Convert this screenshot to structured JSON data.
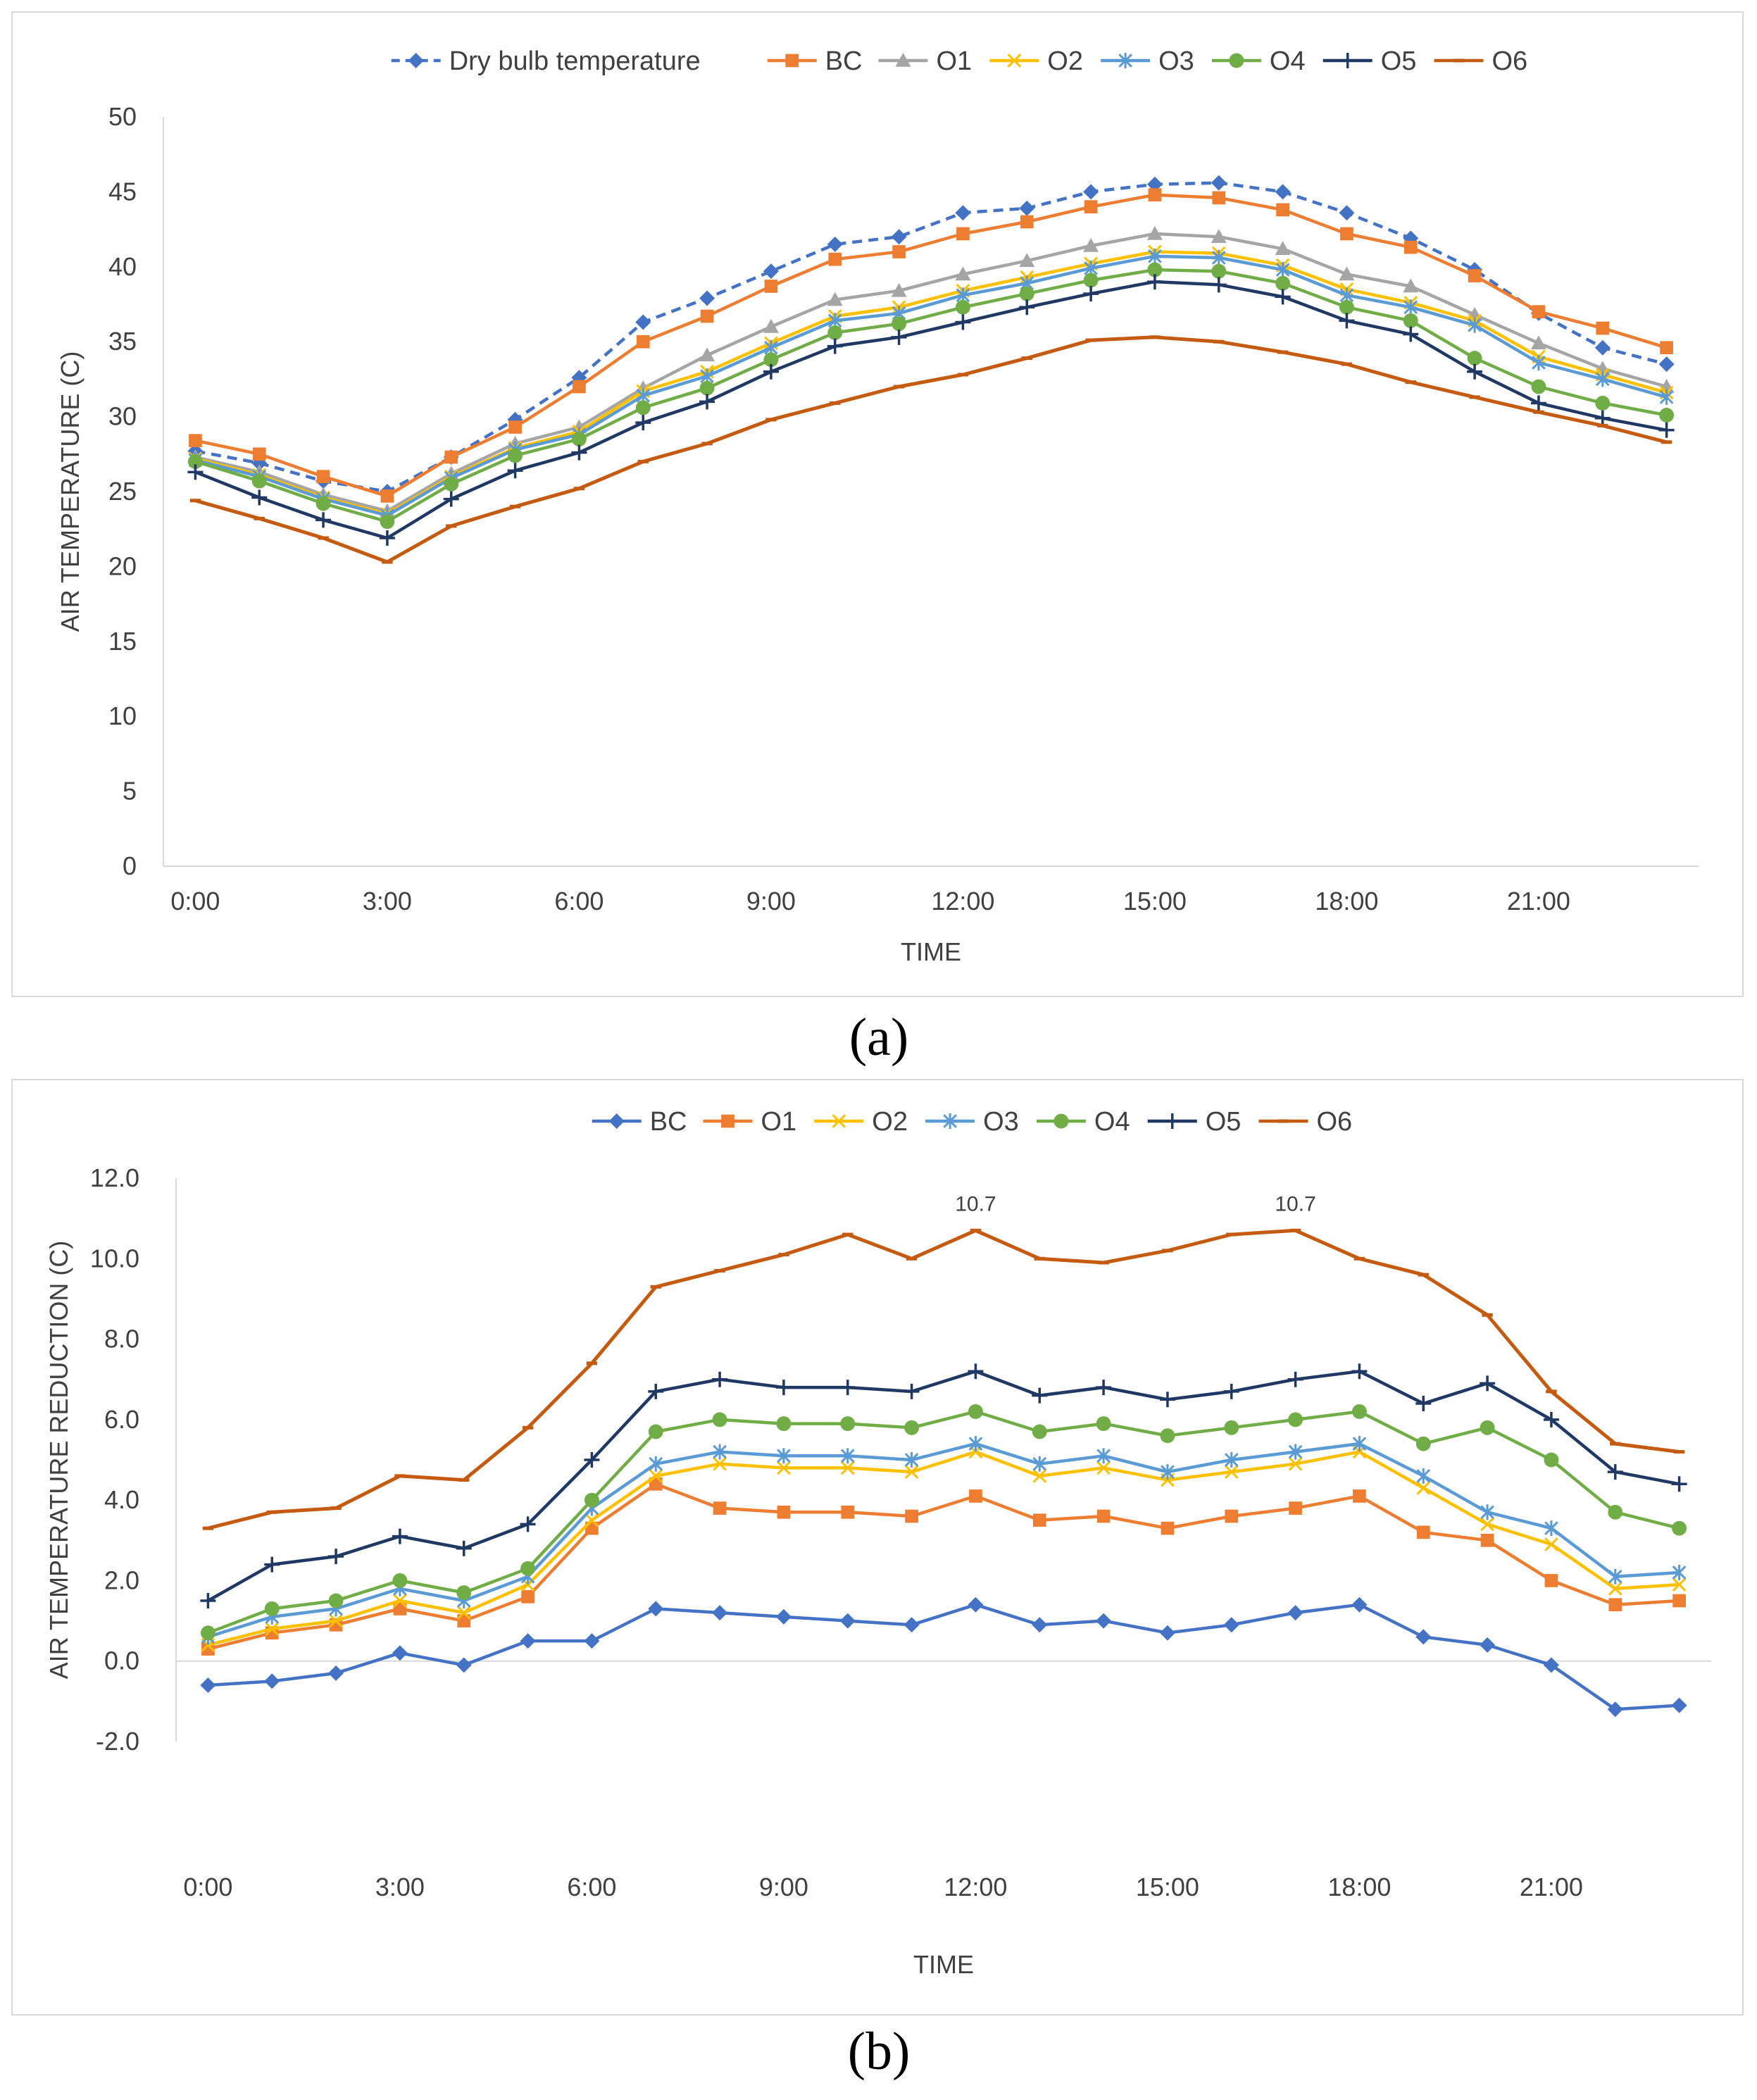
{
  "captions": {
    "a": "(a)",
    "b": "(b)"
  },
  "chart_data": [
    {
      "type": "line",
      "id": "a",
      "title": "",
      "xlabel": "TIME",
      "ylabel": "AIR TEMPERATURE  (C)",
      "x": [
        0,
        1,
        2,
        3,
        4,
        5,
        6,
        7,
        8,
        9,
        10,
        11,
        12,
        13,
        14,
        15,
        16,
        17,
        18,
        19,
        20,
        21,
        22,
        23
      ],
      "xticks": [
        0,
        3,
        6,
        9,
        12,
        15,
        18,
        21
      ],
      "xtick_labels": [
        "0:00",
        "3:00",
        "6:00",
        "9:00",
        "12:00",
        "15:00",
        "18:00",
        "21:00"
      ],
      "ylim": [
        0,
        50
      ],
      "yticks": [
        0,
        5,
        10,
        15,
        20,
        25,
        30,
        35,
        40,
        45,
        50
      ],
      "ytick_labels": [
        "0",
        "5",
        "10",
        "15",
        "20",
        "25",
        "30",
        "35",
        "40",
        "45",
        "50"
      ],
      "grid": false,
      "legend": "top",
      "series": [
        {
          "name": "Dry bulb temperature",
          "color": "#4472c4",
          "marker": "diamond",
          "dashed": true,
          "values": [
            27.7,
            26.9,
            25.7,
            25.0,
            27.3,
            29.8,
            32.6,
            36.3,
            37.9,
            39.7,
            41.5,
            42.0,
            43.6,
            43.9,
            45.0,
            45.5,
            45.6,
            45.0,
            43.6,
            41.9,
            39.8,
            36.9,
            34.6,
            33.5
          ]
        },
        {
          "name": "BC",
          "color": "#ed7d31",
          "marker": "square",
          "dashed": false,
          "values": [
            28.4,
            27.5,
            26.0,
            24.7,
            27.3,
            29.3,
            32.0,
            35.0,
            36.7,
            38.7,
            40.5,
            41.0,
            42.2,
            43.0,
            44.0,
            44.8,
            44.6,
            43.8,
            42.2,
            41.3,
            39.4,
            37.0,
            35.9,
            34.6
          ]
        },
        {
          "name": "O1",
          "color": "#a5a5a5",
          "marker": "triangle",
          "dashed": false,
          "values": [
            27.3,
            26.3,
            24.8,
            23.7,
            26.2,
            28.2,
            29.3,
            31.9,
            34.1,
            36.0,
            37.8,
            38.4,
            39.5,
            40.4,
            41.4,
            42.2,
            42.0,
            41.2,
            39.5,
            38.7,
            36.8,
            34.9,
            33.2,
            32.0
          ]
        },
        {
          "name": "O2",
          "color": "#ffc000",
          "marker": "x",
          "dashed": false,
          "values": [
            27.2,
            26.1,
            24.6,
            23.5,
            26.0,
            27.9,
            29.0,
            31.7,
            33.0,
            34.9,
            36.7,
            37.3,
            38.4,
            39.3,
            40.2,
            41.0,
            40.9,
            40.1,
            38.5,
            37.6,
            36.4,
            34.0,
            32.8,
            31.6
          ]
        },
        {
          "name": "O3",
          "color": "#5b9bd5",
          "marker": "star",
          "dashed": false,
          "values": [
            27.1,
            26.0,
            24.5,
            23.4,
            25.9,
            27.8,
            28.8,
            31.4,
            32.7,
            34.6,
            36.4,
            36.9,
            38.1,
            38.9,
            39.9,
            40.7,
            40.6,
            39.8,
            38.1,
            37.3,
            36.1,
            33.6,
            32.5,
            31.3
          ]
        },
        {
          "name": "O4",
          "color": "#70ad47",
          "marker": "circle",
          "dashed": false,
          "values": [
            27.0,
            25.7,
            24.2,
            23.0,
            25.5,
            27.4,
            28.5,
            30.6,
            31.9,
            33.8,
            35.6,
            36.2,
            37.3,
            38.2,
            39.1,
            39.8,
            39.7,
            38.9,
            37.3,
            36.4,
            33.9,
            32.0,
            30.9,
            30.1
          ]
        },
        {
          "name": "O5",
          "color": "#203864",
          "marker": "plus",
          "dashed": false,
          "values": [
            26.3,
            24.6,
            23.1,
            21.9,
            24.5,
            26.4,
            27.6,
            29.6,
            31.0,
            33.0,
            34.7,
            35.3,
            36.3,
            37.3,
            38.2,
            39.0,
            38.8,
            38.0,
            36.4,
            35.5,
            33.0,
            30.9,
            29.9,
            29.1
          ]
        },
        {
          "name": "O6",
          "color": "#c55a11",
          "marker": "dash",
          "dashed": false,
          "values": [
            24.4,
            23.2,
            21.9,
            20.3,
            22.7,
            24.0,
            25.2,
            27.0,
            28.2,
            29.8,
            30.9,
            32.0,
            32.8,
            33.9,
            35.1,
            35.3,
            35.0,
            34.3,
            33.5,
            32.3,
            31.3,
            30.3,
            29.4,
            28.3
          ]
        }
      ]
    },
    {
      "type": "line",
      "id": "b",
      "title": "",
      "xlabel": "TIME",
      "ylabel": "AIR TEMPERATURE REDUCTION (C)",
      "x": [
        0,
        1,
        2,
        3,
        4,
        5,
        6,
        7,
        8,
        9,
        10,
        11,
        12,
        13,
        14,
        15,
        16,
        17,
        18,
        19,
        20,
        21,
        22,
        23
      ],
      "xticks": [
        0,
        3,
        6,
        9,
        12,
        15,
        18,
        21
      ],
      "xtick_labels": [
        "0:00",
        "3:00",
        "6:00",
        "9:00",
        "12:00",
        "15:00",
        "18:00",
        "21:00"
      ],
      "ylim": [
        -2.0,
        12.0
      ],
      "yticks": [
        -2,
        0,
        2,
        4,
        6,
        8,
        10,
        12
      ],
      "ytick_labels": [
        "-2.0",
        "0.0",
        "2.0",
        "4.0",
        "6.0",
        "8.0",
        "10.0",
        "12.0"
      ],
      "grid": false,
      "legend": "top",
      "annotations": [
        {
          "text": "10.7",
          "series": "O6",
          "x": 12,
          "y": 10.7
        },
        {
          "text": "10.7",
          "series": "O6",
          "x": 17,
          "y": 10.7
        }
      ],
      "series": [
        {
          "name": "BC",
          "color": "#4472c4",
          "marker": "diamond",
          "values": [
            -0.6,
            -0.5,
            -0.3,
            0.2,
            -0.1,
            0.5,
            0.5,
            1.3,
            1.2,
            1.1,
            1.0,
            0.9,
            1.4,
            0.9,
            1.0,
            0.7,
            0.9,
            1.2,
            1.4,
            0.6,
            0.4,
            -0.1,
            -1.2,
            -1.1
          ]
        },
        {
          "name": "O1",
          "color": "#ed7d31",
          "marker": "square",
          "values": [
            0.3,
            0.7,
            0.9,
            1.3,
            1.0,
            1.6,
            3.3,
            4.4,
            3.8,
            3.7,
            3.7,
            3.6,
            4.1,
            3.5,
            3.6,
            3.3,
            3.6,
            3.8,
            4.1,
            3.2,
            3.0,
            2.0,
            1.4,
            1.5
          ]
        },
        {
          "name": "O2",
          "color": "#ffc000",
          "marker": "x",
          "values": [
            0.4,
            0.8,
            1.0,
            1.5,
            1.2,
            1.9,
            3.5,
            4.6,
            4.9,
            4.8,
            4.8,
            4.7,
            5.2,
            4.6,
            4.8,
            4.5,
            4.7,
            4.9,
            5.2,
            4.3,
            3.4,
            2.9,
            1.8,
            1.9
          ]
        },
        {
          "name": "O3",
          "color": "#5b9bd5",
          "marker": "star",
          "values": [
            0.6,
            1.1,
            1.3,
            1.8,
            1.5,
            2.1,
            3.8,
            4.9,
            5.2,
            5.1,
            5.1,
            5.0,
            5.4,
            4.9,
            5.1,
            4.7,
            5.0,
            5.2,
            5.4,
            4.6,
            3.7,
            3.3,
            2.1,
            2.2
          ]
        },
        {
          "name": "O4",
          "color": "#70ad47",
          "marker": "circle",
          "values": [
            0.7,
            1.3,
            1.5,
            2.0,
            1.7,
            2.3,
            4.0,
            5.7,
            6.0,
            5.9,
            5.9,
            5.8,
            6.2,
            5.7,
            5.9,
            5.6,
            5.8,
            6.0,
            6.2,
            5.4,
            5.8,
            5.0,
            3.7,
            3.3
          ]
        },
        {
          "name": "O5",
          "color": "#203864",
          "marker": "plus",
          "values": [
            1.5,
            2.4,
            2.6,
            3.1,
            2.8,
            3.4,
            5.0,
            6.7,
            7.0,
            6.8,
            6.8,
            6.7,
            7.2,
            6.6,
            6.8,
            6.5,
            6.7,
            7.0,
            7.2,
            6.4,
            6.9,
            6.0,
            4.7,
            4.4
          ]
        },
        {
          "name": "O6",
          "color": "#c55a11",
          "marker": "dash",
          "values": [
            3.3,
            3.7,
            3.8,
            4.6,
            4.5,
            5.8,
            7.4,
            9.3,
            9.7,
            10.1,
            10.6,
            10.0,
            10.7,
            10.0,
            9.9,
            10.2,
            10.6,
            10.7,
            10.0,
            9.6,
            8.6,
            6.7,
            5.4,
            5.2
          ]
        }
      ]
    }
  ]
}
